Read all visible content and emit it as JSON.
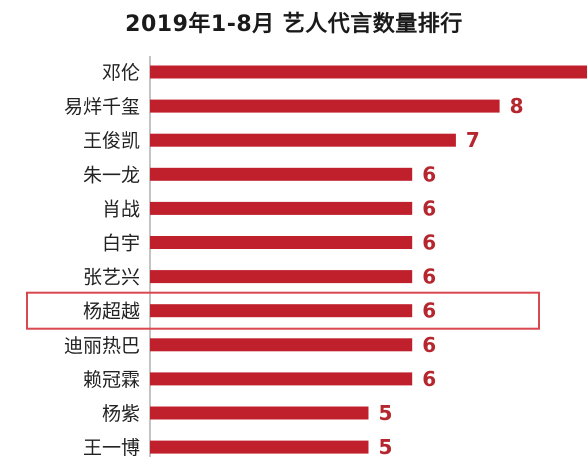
{
  "chart_data": {
    "type": "bar",
    "orientation": "horizontal",
    "title": "2019年1-8月 艺人代言数量排行",
    "categories": [
      "邓伦",
      "易烊千玺",
      "王俊凯",
      "朱一龙",
      "肖战",
      "白宇",
      "张艺兴",
      "杨超越",
      "迪丽热巴",
      "赖冠霖",
      "杨紫",
      "王一博"
    ],
    "values": [
      10,
      8,
      7,
      6,
      6,
      6,
      6,
      6,
      6,
      6,
      5,
      5
    ],
    "data_labels": [
      "",
      "8",
      "7",
      "6",
      "6",
      "6",
      "6",
      "6",
      "6",
      "6",
      "5",
      "5"
    ],
    "highlighted_category": "杨超越",
    "xlim": [
      0,
      10
    ],
    "grid": false,
    "legend": "none",
    "bar_color": "#c0202c",
    "label_color": "#b5262e",
    "highlight_box_color": "#d9474f",
    "axis_color": "#888888"
  }
}
